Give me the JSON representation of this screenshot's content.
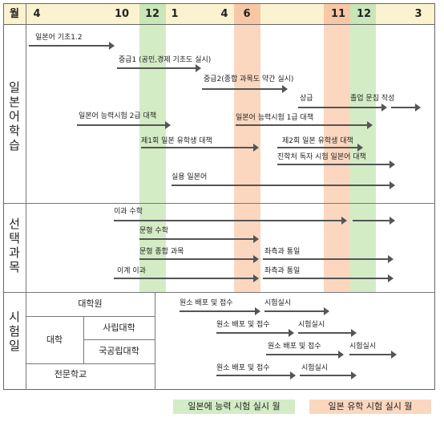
{
  "header": {
    "title": "월",
    "months": [
      "4",
      "10",
      "12",
      "1",
      "4",
      "6",
      "11",
      "12",
      "3"
    ]
  },
  "sections": {
    "japanese": "일본어학습",
    "elective": "선택과목",
    "exam": "시험일"
  },
  "japanese_bars": [
    {
      "label": "일본어 기초1.2"
    },
    {
      "label": "중급1 (공민,경제 기초도 실시)"
    },
    {
      "label": "중급2(종합 과목도 약간 실시)"
    },
    {
      "label": "상급"
    },
    {
      "label": "졸업 문집 작성"
    },
    {
      "label": "일본어 능력시험 2급 대책"
    },
    {
      "label": "일본어 능력시험 1급 대책"
    },
    {
      "label": "제1회 일본 유학생 대책"
    },
    {
      "label": "제2회 일본 유학생 대책"
    },
    {
      "label": "진학처 독자 시험 일본어 대책"
    },
    {
      "label": "실용 일본어"
    }
  ],
  "elective_bars": [
    {
      "label": "이과 수학"
    },
    {
      "label": "문형 수학"
    },
    {
      "label": "문형 종합 과목"
    },
    {
      "label": "좌측과 통일"
    },
    {
      "label": "이계 이과"
    },
    {
      "label": "좌측과 통일"
    }
  ],
  "exam_rows": {
    "graduate": "대학원",
    "university": "대학",
    "private": "사립대학",
    "public": "국공립대학",
    "college": "전문학교",
    "apply_label": "원소 배포 및 접수",
    "test_label": "시험실시"
  },
  "legend": {
    "jlpt": "일본에 능력 시험 실시 월",
    "eju": "일본 유학 시험 실시 월"
  },
  "colors": {
    "jlpt_band": "#d3ecc6",
    "eju_band": "#fbd7bf",
    "header_bg": "#fbf3d0"
  }
}
